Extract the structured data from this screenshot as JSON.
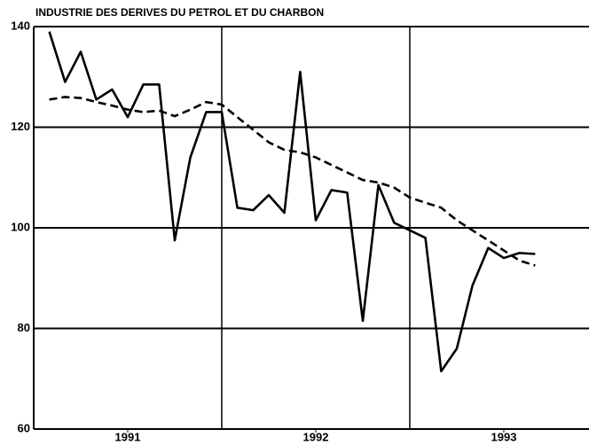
{
  "chart_data": {
    "type": "line",
    "title": "INDUSTRIE DES DERIVES DU PETROL ET DU CHARBON",
    "x": [
      1991.083,
      1991.167,
      1991.25,
      1991.333,
      1991.417,
      1991.5,
      1991.583,
      1991.667,
      1991.75,
      1991.833,
      1991.917,
      1992,
      1992.083,
      1992.167,
      1992.25,
      1992.333,
      1992.417,
      1992.5,
      1992.583,
      1992.667,
      1992.75,
      1992.833,
      1992.917,
      1993,
      1993.083,
      1993.167,
      1993.25,
      1993.333,
      1993.417,
      1993.5,
      1993.583,
      1993.667
    ],
    "series": [
      {
        "color": "#000000",
        "dash": false,
        "values": [
          139,
          129,
          135,
          125.5,
          127.5,
          122,
          128.5,
          128.5,
          97.5,
          114,
          123,
          123,
          104,
          103.5,
          106.5,
          103,
          131,
          101.5,
          107.5,
          107,
          81.5,
          108.5,
          101,
          99.5,
          98,
          71.5,
          76,
          88.5,
          96,
          94,
          95,
          94.8
        ]
      },
      {
        "color": "#000000",
        "dash": true,
        "values": [
          125.5,
          126,
          125.8,
          125,
          124.3,
          123.5,
          123,
          123.3,
          122.2,
          123.5,
          125,
          124.5,
          122,
          119.5,
          117,
          115.5,
          115,
          114,
          112.5,
          111,
          109.5,
          109,
          108,
          106,
          105,
          104,
          101.5,
          99.5,
          97.5,
          95.5,
          93.5,
          92.5
        ]
      }
    ],
    "xlim": [
      1991,
      1993.953
    ],
    "xticks": [
      {
        "value": 1991.5,
        "label": "1991"
      },
      {
        "value": 1992.5,
        "label": "1992"
      },
      {
        "value": 1993.5,
        "label": "1993"
      }
    ],
    "xgrid": [
      1992,
      1993
    ],
    "ylim": [
      60,
      140
    ],
    "yticks": [
      60,
      80,
      100,
      120,
      140
    ],
    "grid": true
  }
}
